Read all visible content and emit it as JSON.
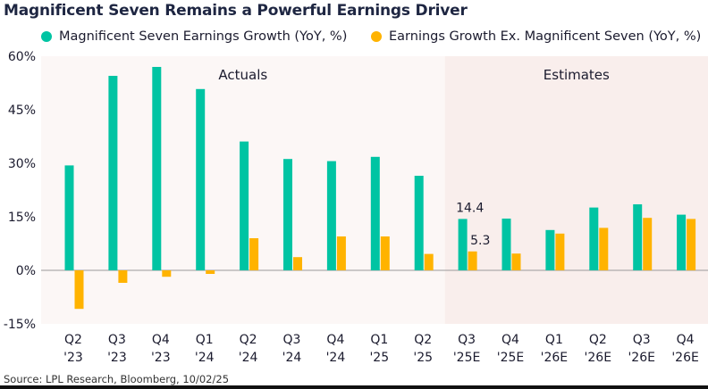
{
  "chart_data": {
    "type": "bar",
    "title": "Magnificent Seven Remains a Powerful Earnings Driver",
    "source": "Source: LPL Research, Bloomberg, 10/02/25",
    "xlabel": "",
    "ylabel": "",
    "ylim": [
      -15,
      60
    ],
    "yticks": [
      60,
      45,
      30,
      15,
      0,
      -15
    ],
    "ytick_labels": [
      "60%",
      "45%",
      "30%",
      "15%",
      "0%",
      "-15%"
    ],
    "grid": false,
    "legend_position": "top",
    "categories": [
      [
        "Q2",
        "'23"
      ],
      [
        "Q3",
        "'23"
      ],
      [
        "Q4",
        "'23"
      ],
      [
        "Q1",
        "'24"
      ],
      [
        "Q2",
        "'24"
      ],
      [
        "Q3",
        "'24"
      ],
      [
        "Q4",
        "'24"
      ],
      [
        "Q1",
        "'25"
      ],
      [
        "Q2",
        "'25"
      ],
      [
        "Q3",
        "'25E"
      ],
      [
        "Q4",
        "'25E"
      ],
      [
        "Q1",
        "'26E"
      ],
      [
        "Q2",
        "'26E"
      ],
      [
        "Q3",
        "'26E"
      ],
      [
        "Q4",
        "'26E"
      ]
    ],
    "regions": [
      {
        "label": "Actuals",
        "start_index": 0,
        "end_index": 8,
        "color": "#fcf7f6"
      },
      {
        "label": "Estimates",
        "start_index": 9,
        "end_index": 14,
        "color": "#f9eeec"
      }
    ],
    "series": [
      {
        "name": "Magnificent Seven Earnings Growth (YoY, %)",
        "color": "#00c4a3",
        "values": [
          29.4,
          54.5,
          57.0,
          50.8,
          36.1,
          31.2,
          30.6,
          31.8,
          26.5,
          14.4,
          14.5,
          11.3,
          17.6,
          18.5,
          15.6
        ]
      },
      {
        "name": "Earnings Growth Ex. Magnificent Seven (YoY, %)",
        "color": "#ffb300",
        "values": [
          -10.8,
          -3.5,
          -1.8,
          -1.0,
          9.0,
          3.7,
          9.5,
          9.5,
          4.6,
          5.3,
          4.7,
          10.3,
          11.9,
          14.7,
          14.4
        ]
      }
    ],
    "annotations": [
      {
        "series": 0,
        "index": 9,
        "text": "14.4"
      },
      {
        "series": 1,
        "index": 9,
        "text": "5.3"
      }
    ]
  }
}
